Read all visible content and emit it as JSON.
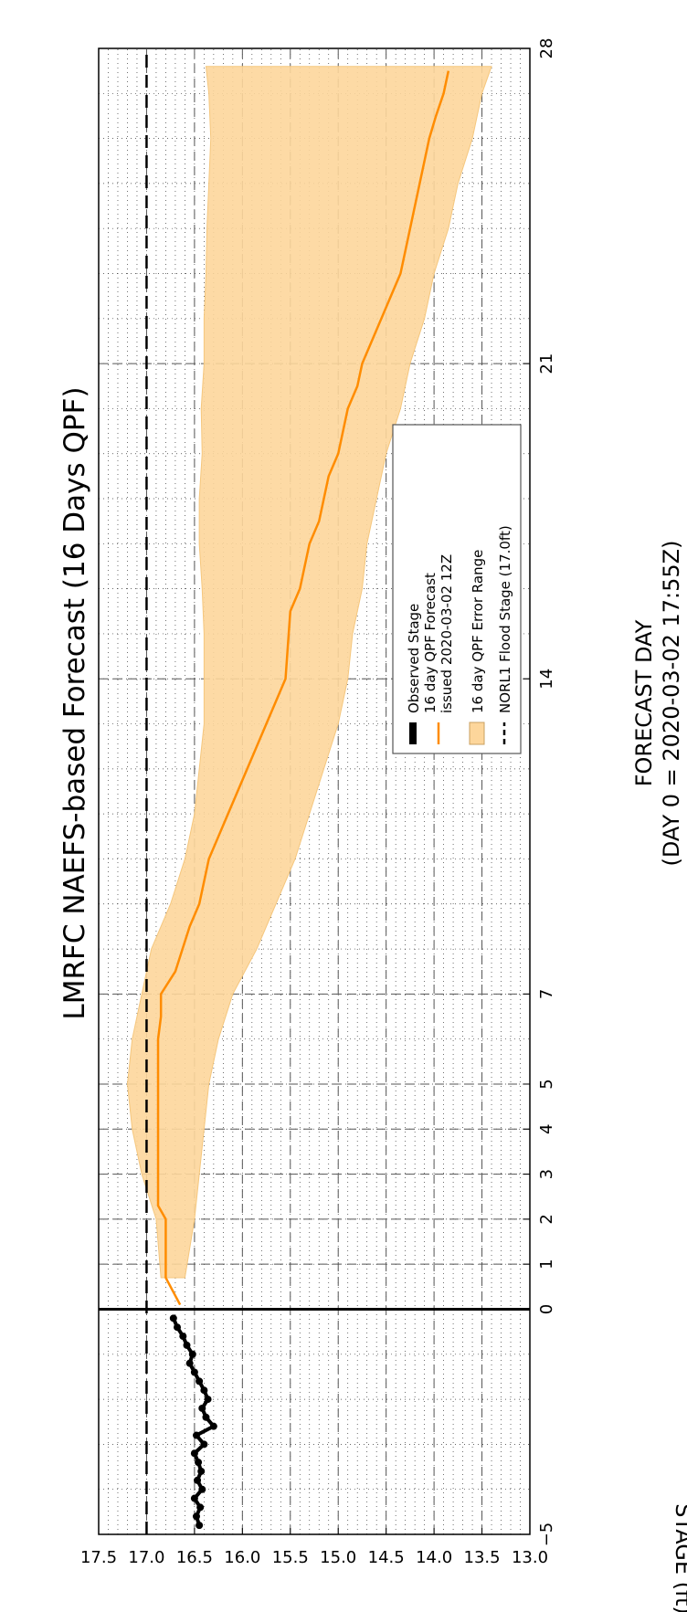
{
  "chart_data": {
    "type": "line",
    "title": "LMRFC NAEFS-based Forecast (16 Days QPF)",
    "xlabel_line1": "FORECAST DAY",
    "xlabel_line2": "(DAY 0 = 2020-03-02 17:55Z)",
    "ylabel": "STAGE (ft)",
    "x_ticks": [
      -5,
      0,
      1,
      2,
      3,
      4,
      5,
      7,
      14,
      21,
      28
    ],
    "x_tick_labels": [
      "−5",
      "0",
      "1",
      "2",
      "3",
      "4",
      "5",
      "7",
      "14",
      "21",
      "28"
    ],
    "y_ticks": [
      13.0,
      13.5,
      14.0,
      14.5,
      15.0,
      15.5,
      16.0,
      16.5,
      17.0,
      17.5
    ],
    "y_tick_labels": [
      "13.0",
      "13.5",
      "14.0",
      "14.5",
      "15.0",
      "15.5",
      "16.0",
      "16.5",
      "17.0",
      "17.5"
    ],
    "xlim": [
      -5,
      28
    ],
    "ylim": [
      13.0,
      17.5
    ],
    "orientation": "rotated 90 degrees counter-clockwise",
    "grid": true,
    "legend_placement": "center",
    "legend": [
      {
        "label": "Observed Stage",
        "style": "observed"
      },
      {
        "label": "16 day QPF Forecast",
        "label2": "issued 2020-03-02 12Z",
        "style": "forecast"
      },
      {
        "label": "16 day QPF Error Range",
        "style": "range"
      },
      {
        "label": "NORL1 Flood Stage (17.0ft)",
        "style": "flood"
      }
    ],
    "colors": {
      "observed": "#000000",
      "forecast": "#ff8c00",
      "range_fill": "#fdd69b",
      "range_edge": "#f5c77e",
      "flood": "#000000"
    },
    "flood_stage": 17.0,
    "series": [
      {
        "name": "Observed Stage",
        "x": [
          -4.8,
          -4.6,
          -4.4,
          -4.2,
          -4.0,
          -3.8,
          -3.6,
          -3.4,
          -3.2,
          -3.0,
          -2.8,
          -2.6,
          -2.4,
          -2.2,
          -2.0,
          -1.8,
          -1.6,
          -1.4,
          -1.2,
          -1.0,
          -0.8,
          -0.6,
          -0.4,
          -0.2
        ],
        "y": [
          16.45,
          16.48,
          16.44,
          16.5,
          16.42,
          16.47,
          16.43,
          16.46,
          16.5,
          16.4,
          16.48,
          16.3,
          16.38,
          16.42,
          16.36,
          16.4,
          16.45,
          16.5,
          16.55,
          16.52,
          16.58,
          16.62,
          16.68,
          16.72
        ]
      },
      {
        "name": "16 day QPF Forecast",
        "x": [
          0.1,
          0.7,
          2.0,
          2.3,
          6.0,
          6.5,
          7.0,
          7.5,
          8.5,
          9.0,
          9.5,
          10.0,
          10.5,
          11.0,
          11.5,
          12.0,
          12.5,
          13.0,
          13.5,
          14.0,
          15.5,
          16.0,
          17.0,
          17.5,
          18.5,
          19.0,
          20.0,
          20.5,
          21.0,
          21.5,
          22.0,
          22.5,
          23.0,
          23.5,
          24.0,
          25.0,
          25.5,
          26.0,
          26.5,
          27.0,
          27.5
        ],
        "y": [
          16.65,
          16.8,
          16.8,
          16.88,
          16.88,
          16.85,
          16.85,
          16.7,
          16.55,
          16.45,
          16.4,
          16.35,
          16.25,
          16.15,
          16.05,
          15.95,
          15.85,
          15.75,
          15.65,
          15.55,
          15.5,
          15.4,
          15.3,
          15.2,
          15.1,
          15.0,
          14.9,
          14.8,
          14.75,
          14.65,
          14.55,
          14.45,
          14.35,
          14.3,
          14.25,
          14.15,
          14.1,
          14.05,
          13.98,
          13.9,
          13.85
        ]
      },
      {
        "name": "16 day QPF Error Range",
        "x": [
          0.7,
          2.0,
          3.0,
          4.0,
          5.0,
          6.0,
          7.0,
          8.0,
          9.0,
          10.0,
          11.0,
          12.0,
          13.0,
          14.0,
          15.0,
          16.0,
          17.0,
          18.0,
          19.0,
          20.0,
          21.0,
          22.0,
          23.0,
          24.0,
          25.0,
          26.0,
          27.0,
          27.6
        ],
        "y_upper": [
          16.85,
          16.9,
          17.05,
          17.15,
          17.2,
          17.15,
          17.05,
          16.95,
          16.75,
          16.6,
          16.5,
          16.45,
          16.4,
          16.4,
          16.4,
          16.42,
          16.45,
          16.45,
          16.42,
          16.43,
          16.4,
          16.4,
          16.38,
          16.37,
          16.35,
          16.33,
          16.35,
          16.38
        ],
        "y_lower": [
          16.6,
          16.5,
          16.45,
          16.4,
          16.35,
          16.25,
          16.1,
          15.85,
          15.65,
          15.45,
          15.3,
          15.15,
          15.0,
          14.9,
          14.85,
          14.75,
          14.7,
          14.6,
          14.5,
          14.35,
          14.25,
          14.1,
          14.0,
          13.85,
          13.75,
          13.6,
          13.5,
          13.4
        ]
      }
    ]
  }
}
